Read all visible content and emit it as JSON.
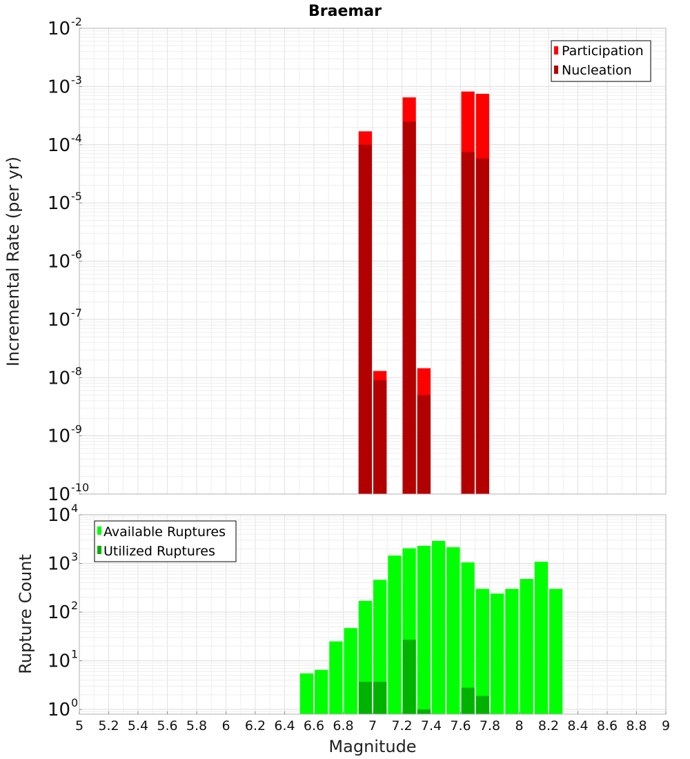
{
  "chart_data": [
    {
      "type": "bar",
      "title": "Braemar",
      "xlabel": "",
      "ylabel": "Incremental Rate (per yr)",
      "y_scale": "log",
      "xlim": [
        5,
        9
      ],
      "ylim": [
        1e-10,
        0.01
      ],
      "y_decades": [
        {
          "base": "10",
          "exp": "-10",
          "value": 1e-10
        },
        {
          "base": "10",
          "exp": "-9",
          "value": 1e-09
        },
        {
          "base": "10",
          "exp": "-8",
          "value": 1e-08
        },
        {
          "base": "10",
          "exp": "-7",
          "value": 1e-07
        },
        {
          "base": "10",
          "exp": "-6",
          "value": 1e-06
        },
        {
          "base": "10",
          "exp": "-5",
          "value": 1e-05
        },
        {
          "base": "10",
          "exp": "-4",
          "value": 0.0001
        },
        {
          "base": "10",
          "exp": "-3",
          "value": 0.001
        },
        {
          "base": "10",
          "exp": "-2",
          "value": 0.01
        }
      ],
      "grid": true,
      "legend_position": "top-right",
      "series": [
        {
          "name": "Participation",
          "color": "#ff0000",
          "points": [
            {
              "x": 6.95,
              "y": 0.00017
            },
            {
              "x": 7.05,
              "y": 1.3e-08
            },
            {
              "x": 7.25,
              "y": 0.00065
            },
            {
              "x": 7.35,
              "y": 1.45e-08
            },
            {
              "x": 7.65,
              "y": 0.00082
            },
            {
              "x": 7.75,
              "y": 0.00075
            }
          ]
        },
        {
          "name": "Nucleation",
          "color": "#b20000",
          "points": [
            {
              "x": 6.95,
              "y": 0.0001
            },
            {
              "x": 7.05,
              "y": 9e-09
            },
            {
              "x": 7.25,
              "y": 0.00025
            },
            {
              "x": 7.35,
              "y": 5e-09
            },
            {
              "x": 7.65,
              "y": 7.5e-05
            },
            {
              "x": 7.75,
              "y": 5.8e-05
            }
          ]
        }
      ]
    },
    {
      "type": "bar",
      "title": "",
      "xlabel": "Magnitude",
      "ylabel": "Rupture Count",
      "y_scale": "log",
      "xlim": [
        5,
        9
      ],
      "ylim": [
        0.8,
        10000.0
      ],
      "x_ticks": [
        "5",
        "5.2",
        "5.4",
        "5.6",
        "5.8",
        "6",
        "6.2",
        "6.4",
        "6.6",
        "6.8",
        "7",
        "7.2",
        "7.4",
        "7.6",
        "7.8",
        "8",
        "8.2",
        "8.4",
        "8.6",
        "8.8",
        "9"
      ],
      "y_decades": [
        {
          "base": "10",
          "exp": "0",
          "value": 1
        },
        {
          "base": "10",
          "exp": "1",
          "value": 10
        },
        {
          "base": "10",
          "exp": "2",
          "value": 100
        },
        {
          "base": "10",
          "exp": "3",
          "value": 1000
        },
        {
          "base": "10",
          "exp": "4",
          "value": 10000
        }
      ],
      "grid": true,
      "legend_position": "top-left",
      "series": [
        {
          "name": "Available Ruptures",
          "color": "#00ff00",
          "points": [
            {
              "x": 6.55,
              "y": 5.5
            },
            {
              "x": 6.65,
              "y": 6.5
            },
            {
              "x": 6.75,
              "y": 25
            },
            {
              "x": 6.85,
              "y": 47
            },
            {
              "x": 6.95,
              "y": 170
            },
            {
              "x": 7.05,
              "y": 460
            },
            {
              "x": 7.15,
              "y": 1450
            },
            {
              "x": 7.25,
              "y": 2050
            },
            {
              "x": 7.35,
              "y": 2300
            },
            {
              "x": 7.45,
              "y": 2900
            },
            {
              "x": 7.55,
              "y": 2150
            },
            {
              "x": 7.65,
              "y": 1050
            },
            {
              "x": 7.75,
              "y": 300
            },
            {
              "x": 7.85,
              "y": 240
            },
            {
              "x": 7.95,
              "y": 300
            },
            {
              "x": 8.05,
              "y": 480
            },
            {
              "x": 8.15,
              "y": 1080
            },
            {
              "x": 8.25,
              "y": 300
            }
          ]
        },
        {
          "name": "Utilized Ruptures",
          "color": "#00b200",
          "points": [
            {
              "x": 6.95,
              "y": 3.7
            },
            {
              "x": 7.05,
              "y": 3.7
            },
            {
              "x": 7.25,
              "y": 27
            },
            {
              "x": 7.35,
              "y": 1
            },
            {
              "x": 7.65,
              "y": 2.8
            },
            {
              "x": 7.75,
              "y": 1.9
            }
          ]
        }
      ]
    }
  ]
}
